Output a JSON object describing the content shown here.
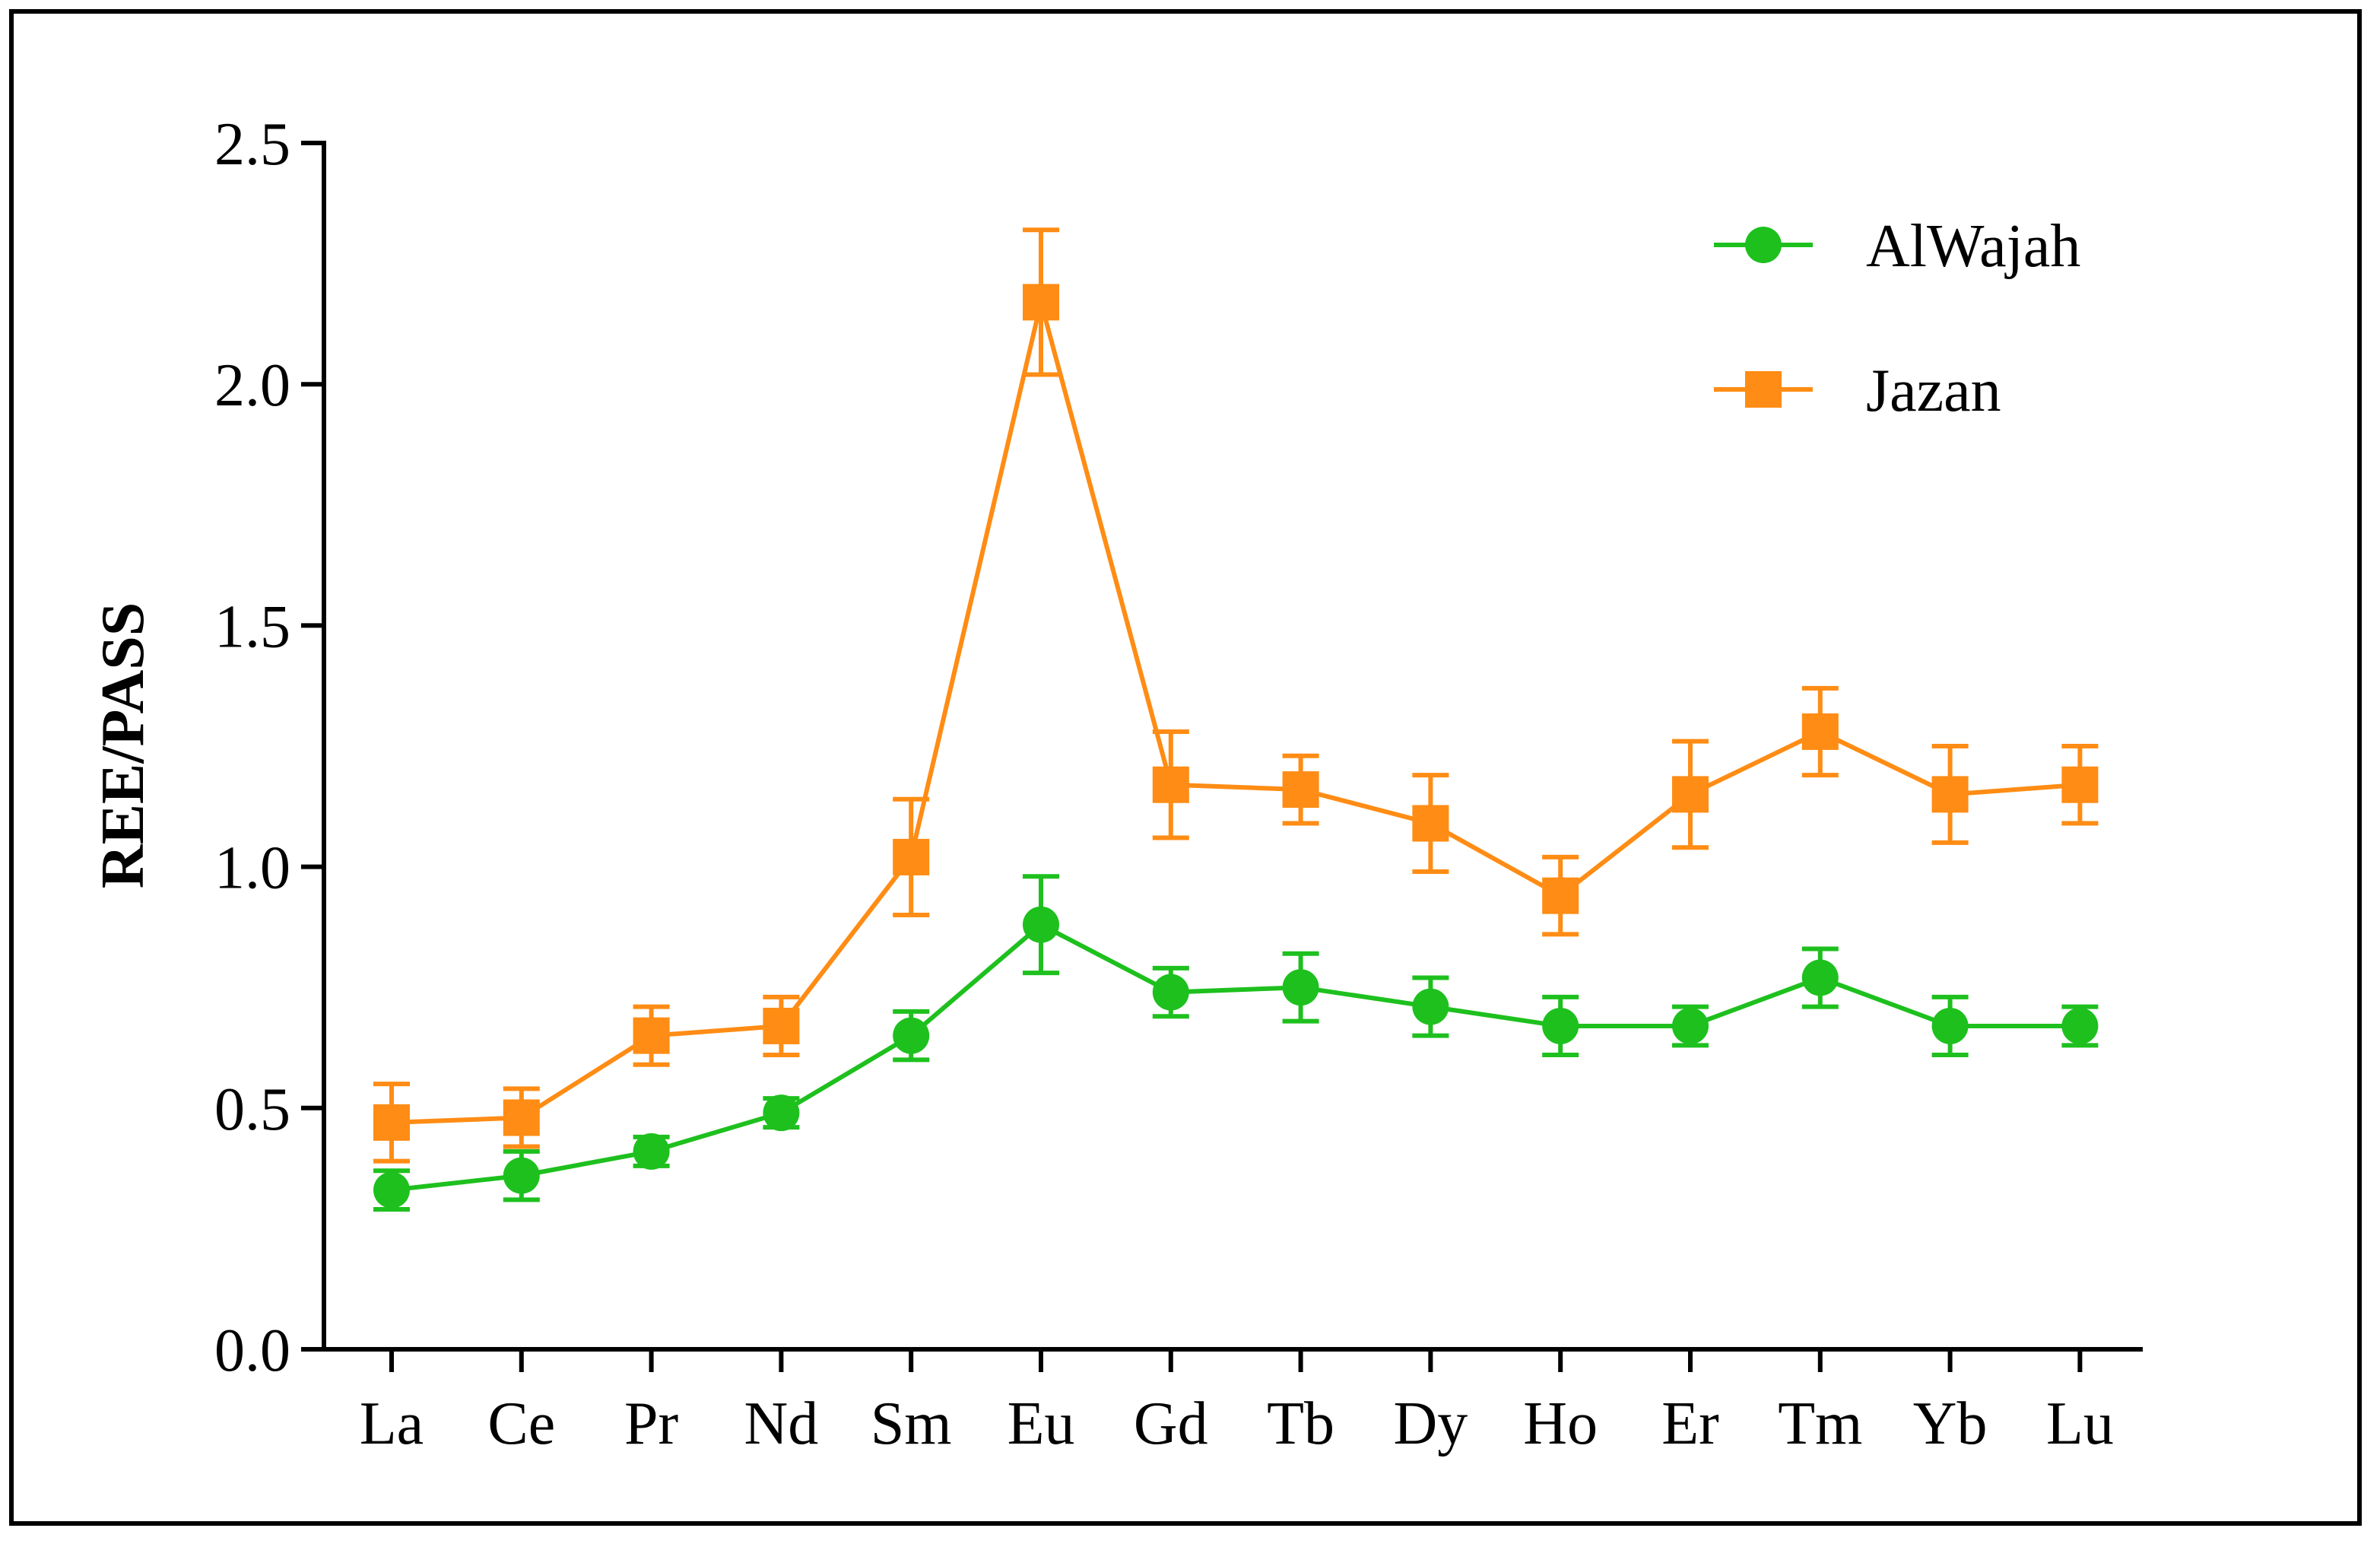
{
  "chart_data": {
    "type": "line",
    "title": "",
    "xlabel": "",
    "ylabel": "REE/PASS",
    "ylim": [
      0,
      2.5
    ],
    "yticks": [
      "0.0",
      "0.5",
      "1.0",
      "1.5",
      "2.0",
      "2.5"
    ],
    "categories": [
      "La",
      "Ce",
      "Pr",
      "Nd",
      "Sm",
      "Eu",
      "Gd",
      "Tb",
      "Dy",
      "Ho",
      "Er",
      "Tm",
      "Yb",
      "Lu"
    ],
    "legend_position": "top-right",
    "series": [
      {
        "name": "AlWajah",
        "marker": "circle",
        "color": "#1ec01e",
        "values": [
          0.33,
          0.36,
          0.41,
          0.49,
          0.65,
          0.88,
          0.74,
          0.75,
          0.71,
          0.67,
          0.67,
          0.77,
          0.67,
          0.67
        ],
        "errors": [
          0.04,
          0.05,
          0.03,
          0.03,
          0.05,
          0.1,
          0.05,
          0.07,
          0.06,
          0.06,
          0.04,
          0.06,
          0.06,
          0.04
        ]
      },
      {
        "name": "Jazan",
        "marker": "square",
        "color": "#ff8c14",
        "values": [
          0.47,
          0.48,
          0.65,
          0.67,
          1.02,
          2.17,
          1.17,
          1.16,
          1.09,
          0.94,
          1.15,
          1.28,
          1.15,
          1.17
        ],
        "errors": [
          0.08,
          0.06,
          0.06,
          0.06,
          0.12,
          0.15,
          0.11,
          0.07,
          0.1,
          0.08,
          0.11,
          0.09,
          0.1,
          0.08
        ]
      }
    ]
  }
}
